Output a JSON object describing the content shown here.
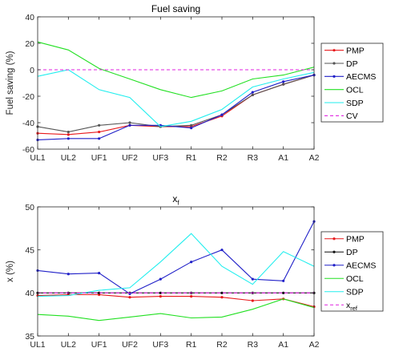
{
  "chart_data": [
    {
      "type": "line",
      "title": "Fuel saving",
      "xlabel": "",
      "ylabel": "Fuel saving (%)",
      "categories": [
        "UL1",
        "UL2",
        "UF1",
        "UF2",
        "UF3",
        "R1",
        "R2",
        "R3",
        "A1",
        "A2"
      ],
      "ylim": [
        -60,
        40
      ],
      "yticks": [
        -60,
        -40,
        -20,
        0,
        20,
        40
      ],
      "grid": false,
      "legend_position": "outside-right",
      "series": [
        {
          "name": "PMP",
          "color": "#e8191c",
          "dash": "solid",
          "marker": "dot",
          "values": [
            -48,
            -49,
            -47,
            -42,
            -43,
            -43,
            -35,
            -19,
            -11,
            -4
          ]
        },
        {
          "name": "DP",
          "color": "#555555",
          "dash": "solid",
          "marker": "dot",
          "values": [
            -43,
            -47,
            -42,
            -40,
            -43,
            -42,
            -34,
            -19,
            -11,
            -4
          ]
        },
        {
          "name": "AECMS",
          "color": "#2020c8",
          "dash": "solid",
          "marker": "dot",
          "values": [
            -53,
            -52,
            -52,
            -42,
            -42,
            -44,
            -34,
            -17,
            -9,
            -4
          ]
        },
        {
          "name": "OCL",
          "color": "#22e022",
          "dash": "solid",
          "marker": "none",
          "values": [
            21,
            15,
            1,
            -7,
            -15,
            -21,
            -16,
            -7,
            -4,
            2
          ]
        },
        {
          "name": "SDP",
          "color": "#22eeee",
          "dash": "solid",
          "marker": "none",
          "values": [
            -5,
            0,
            -15,
            -21,
            -43,
            -39,
            -30,
            -13,
            -7,
            -2
          ]
        },
        {
          "name": "CV",
          "color": "#e020e0",
          "dash": "dashed",
          "marker": "none",
          "values": [
            0,
            0,
            0,
            0,
            0,
            0,
            0,
            0,
            0,
            0
          ]
        }
      ]
    },
    {
      "type": "line",
      "title": "x",
      "title_sub": "f",
      "xlabel": "",
      "ylabel": "x (%)",
      "categories": [
        "UL1",
        "UL2",
        "UF1",
        "UF2",
        "UF3",
        "R1",
        "R2",
        "R3",
        "A1",
        "A2"
      ],
      "ylim": [
        35,
        50
      ],
      "yticks": [
        35,
        40,
        45,
        50
      ],
      "grid": false,
      "legend_position": "outside-right",
      "series": [
        {
          "name": "PMP",
          "color": "#e8191c",
          "dash": "solid",
          "marker": "dot",
          "values": [
            39.7,
            39.8,
            39.8,
            39.5,
            39.6,
            39.6,
            39.5,
            39.1,
            39.3,
            38.4
          ]
        },
        {
          "name": "DP",
          "color": "#111111",
          "dash": "solid",
          "marker": "dot",
          "values": [
            40.0,
            40.0,
            40.0,
            40.0,
            40.0,
            40.0,
            40.0,
            40.0,
            40.0,
            40.0
          ]
        },
        {
          "name": "AECMS",
          "color": "#2020c8",
          "dash": "solid",
          "marker": "dot",
          "values": [
            42.6,
            42.2,
            42.3,
            39.9,
            41.6,
            43.6,
            45.0,
            41.6,
            41.4,
            48.3
          ]
        },
        {
          "name": "OCL",
          "color": "#22e022",
          "dash": "solid",
          "marker": "none",
          "values": [
            37.5,
            37.3,
            36.8,
            37.2,
            37.6,
            37.1,
            37.2,
            38.1,
            39.3,
            38.3
          ]
        },
        {
          "name": "SDP",
          "color": "#22eeee",
          "dash": "solid",
          "marker": "none",
          "values": [
            39.6,
            39.7,
            40.3,
            40.6,
            43.6,
            46.9,
            43.1,
            41.0,
            44.8,
            43.1
          ]
        },
        {
          "name": "x",
          "name_sub": "ref",
          "color": "#e020e0",
          "dash": "dashed",
          "marker": "none",
          "values": [
            40.0,
            40.0,
            40.0,
            40.0,
            40.0,
            40.0,
            40.0,
            40.0,
            40.0,
            40.0
          ]
        }
      ]
    }
  ]
}
